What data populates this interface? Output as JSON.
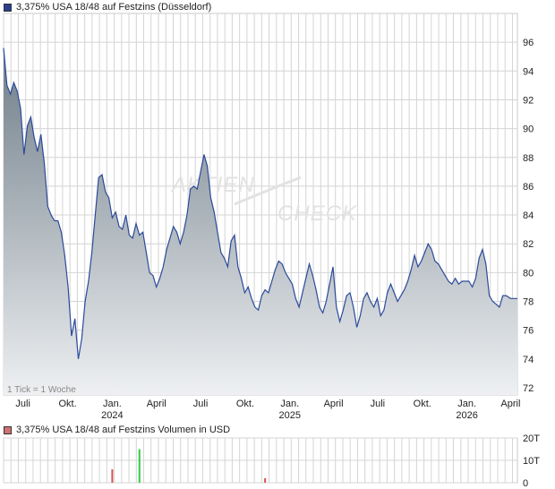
{
  "colors": {
    "price_legend_swatch": "#2b3f8f",
    "volume_legend_swatch": "#d07070",
    "price_line": "#2b4a9a",
    "area_top": "#6f7d88",
    "area_bottom": "#eef0f2",
    "grid": "#d4d4d4",
    "volume_up": "#2ecc40",
    "volume_down": "#d9534f"
  },
  "watermark": {
    "line1": "AKTIEN",
    "line2": "CHECK"
  },
  "chart_data": [
    {
      "type": "area",
      "title": "3,375% USA 18/48 auf Festzins (Düsseldorf)",
      "note": "1 Tick = 1 Woche",
      "ylim": [
        71.5,
        98
      ],
      "y_ticks": [
        72,
        74,
        76,
        78,
        80,
        82,
        84,
        86,
        88,
        90,
        92,
        94,
        96
      ],
      "y_tick_labels": [
        "72",
        "74",
        "76",
        "78",
        "80",
        "82",
        "84",
        "86",
        "88",
        "90",
        "92",
        "94",
        "96"
      ],
      "x_range": [
        "2023-05-22",
        "2026-04-15"
      ],
      "x_ticks": [
        {
          "date": "2023-07-01",
          "label": "Juli",
          "sublabel": ""
        },
        {
          "date": "2023-10-01",
          "label": "Okt.",
          "sublabel": ""
        },
        {
          "date": "2024-01-01",
          "label": "Jan.",
          "sublabel": "2024"
        },
        {
          "date": "2024-04-01",
          "label": "April",
          "sublabel": ""
        },
        {
          "date": "2024-07-01",
          "label": "Juli",
          "sublabel": ""
        },
        {
          "date": "2024-10-01",
          "label": "Okt.",
          "sublabel": ""
        },
        {
          "date": "2025-01-01",
          "label": "Jan.",
          "sublabel": "2025"
        },
        {
          "date": "2025-04-01",
          "label": "April",
          "sublabel": ""
        },
        {
          "date": "2025-07-01",
          "label": "Juli",
          "sublabel": ""
        },
        {
          "date": "2025-10-01",
          "label": "Okt.",
          "sublabel": ""
        },
        {
          "date": "2026-01-01",
          "label": "Jan.",
          "sublabel": "2026"
        },
        {
          "date": "2026-04-01",
          "label": "April",
          "sublabel": ""
        }
      ],
      "grid": true,
      "series": [
        {
          "values": [
            [
              "2023-05-22",
              95.6
            ],
            [
              "2023-05-29",
              93.0
            ],
            [
              "2023-06-05",
              92.4
            ],
            [
              "2023-06-12",
              93.2
            ],
            [
              "2023-06-19",
              92.6
            ],
            [
              "2023-06-26",
              91.4
            ],
            [
              "2023-07-03",
              88.2
            ],
            [
              "2023-07-10",
              90.2
            ],
            [
              "2023-07-17",
              90.8
            ],
            [
              "2023-07-24",
              89.4
            ],
            [
              "2023-07-31",
              88.4
            ],
            [
              "2023-08-07",
              89.6
            ],
            [
              "2023-08-14",
              87.6
            ],
            [
              "2023-08-21",
              84.6
            ],
            [
              "2023-08-28",
              84.0
            ],
            [
              "2023-09-04",
              83.6
            ],
            [
              "2023-09-11",
              83.6
            ],
            [
              "2023-09-18",
              82.8
            ],
            [
              "2023-09-25",
              81.2
            ],
            [
              "2023-10-02",
              79.0
            ],
            [
              "2023-10-09",
              75.6
            ],
            [
              "2023-10-16",
              76.8
            ],
            [
              "2023-10-23",
              74.0
            ],
            [
              "2023-10-30",
              75.4
            ],
            [
              "2023-11-06",
              78.0
            ],
            [
              "2023-11-13",
              79.4
            ],
            [
              "2023-11-20",
              81.4
            ],
            [
              "2023-11-27",
              84.0
            ],
            [
              "2023-12-04",
              86.6
            ],
            [
              "2023-12-11",
              86.8
            ],
            [
              "2023-12-18",
              85.6
            ],
            [
              "2023-12-25",
              85.2
            ],
            [
              "2024-01-01",
              83.8
            ],
            [
              "2024-01-08",
              84.2
            ],
            [
              "2024-01-15",
              83.2
            ],
            [
              "2024-01-22",
              83.0
            ],
            [
              "2024-01-29",
              84.0
            ],
            [
              "2024-02-05",
              82.6
            ],
            [
              "2024-02-12",
              82.4
            ],
            [
              "2024-02-19",
              83.4
            ],
            [
              "2024-02-26",
              82.6
            ],
            [
              "2024-03-04",
              82.8
            ],
            [
              "2024-03-11",
              81.4
            ],
            [
              "2024-03-18",
              80.0
            ],
            [
              "2024-03-25",
              79.8
            ],
            [
              "2024-04-01",
              79.0
            ],
            [
              "2024-04-08",
              79.6
            ],
            [
              "2024-04-15",
              80.4
            ],
            [
              "2024-04-22",
              81.6
            ],
            [
              "2024-04-29",
              82.4
            ],
            [
              "2024-05-06",
              83.2
            ],
            [
              "2024-05-13",
              82.8
            ],
            [
              "2024-05-20",
              82.0
            ],
            [
              "2024-05-27",
              82.8
            ],
            [
              "2024-06-03",
              84.0
            ],
            [
              "2024-06-10",
              85.8
            ],
            [
              "2024-06-17",
              86.0
            ],
            [
              "2024-06-24",
              85.8
            ],
            [
              "2024-07-01",
              87.0
            ],
            [
              "2024-07-08",
              88.2
            ],
            [
              "2024-07-15",
              87.4
            ],
            [
              "2024-07-22",
              85.2
            ],
            [
              "2024-07-29",
              84.2
            ],
            [
              "2024-08-05",
              82.8
            ],
            [
              "2024-08-12",
              81.4
            ],
            [
              "2024-08-19",
              81.0
            ],
            [
              "2024-08-26",
              80.4
            ],
            [
              "2024-09-02",
              82.2
            ],
            [
              "2024-09-09",
              82.6
            ],
            [
              "2024-09-16",
              80.4
            ],
            [
              "2024-09-23",
              79.6
            ],
            [
              "2024-09-30",
              78.6
            ],
            [
              "2024-10-07",
              79.0
            ],
            [
              "2024-10-14",
              78.2
            ],
            [
              "2024-10-21",
              77.6
            ],
            [
              "2024-10-28",
              77.4
            ],
            [
              "2024-11-04",
              78.4
            ],
            [
              "2024-11-11",
              78.8
            ],
            [
              "2024-11-18",
              78.6
            ],
            [
              "2024-11-25",
              79.4
            ],
            [
              "2024-12-02",
              80.2
            ],
            [
              "2024-12-09",
              80.8
            ],
            [
              "2024-12-16",
              80.6
            ],
            [
              "2024-12-23",
              80.0
            ],
            [
              "2024-12-30",
              79.6
            ],
            [
              "2025-01-06",
              79.2
            ],
            [
              "2025-01-13",
              78.2
            ],
            [
              "2025-01-20",
              77.6
            ],
            [
              "2025-01-27",
              78.6
            ],
            [
              "2025-02-03",
              79.6
            ],
            [
              "2025-02-10",
              80.6
            ],
            [
              "2025-02-17",
              79.8
            ],
            [
              "2025-02-24",
              78.8
            ],
            [
              "2025-03-03",
              77.6
            ],
            [
              "2025-03-10",
              77.2
            ],
            [
              "2025-03-17",
              78.0
            ],
            [
              "2025-03-24",
              79.2
            ],
            [
              "2025-03-31",
              80.4
            ],
            [
              "2025-04-07",
              77.6
            ],
            [
              "2025-04-14",
              76.6
            ],
            [
              "2025-04-21",
              77.4
            ],
            [
              "2025-04-28",
              78.4
            ],
            [
              "2025-05-05",
              78.6
            ],
            [
              "2025-05-12",
              77.6
            ],
            [
              "2025-05-19",
              76.2
            ],
            [
              "2025-05-26",
              77.0
            ],
            [
              "2025-06-02",
              78.2
            ],
            [
              "2025-06-09",
              78.6
            ],
            [
              "2025-06-16",
              78.0
            ],
            [
              "2025-06-23",
              77.6
            ],
            [
              "2025-06-30",
              78.2
            ],
            [
              "2025-07-07",
              77.0
            ],
            [
              "2025-07-14",
              77.4
            ],
            [
              "2025-07-21",
              78.6
            ],
            [
              "2025-07-28",
              79.2
            ],
            [
              "2025-08-04",
              78.6
            ],
            [
              "2025-08-11",
              78.0
            ],
            [
              "2025-08-18",
              78.4
            ],
            [
              "2025-08-25",
              78.8
            ],
            [
              "2025-09-01",
              79.4
            ],
            [
              "2025-09-08",
              80.2
            ],
            [
              "2025-09-15",
              81.2
            ],
            [
              "2025-09-22",
              80.4
            ],
            [
              "2025-09-29",
              80.8
            ],
            [
              "2025-10-06",
              81.4
            ],
            [
              "2025-10-13",
              82.0
            ],
            [
              "2025-10-20",
              81.6
            ],
            [
              "2025-10-27",
              80.8
            ],
            [
              "2025-11-03",
              80.6
            ],
            [
              "2025-11-10",
              80.2
            ],
            [
              "2025-11-17",
              79.8
            ],
            [
              "2025-11-24",
              79.4
            ],
            [
              "2025-12-01",
              79.2
            ],
            [
              "2025-12-08",
              79.6
            ],
            [
              "2025-12-15",
              79.2
            ],
            [
              "2025-12-22",
              79.4
            ],
            [
              "2026-01-05",
              79.4
            ],
            [
              "2026-01-12",
              79.0
            ],
            [
              "2026-01-19",
              79.6
            ],
            [
              "2026-01-26",
              81.0
            ],
            [
              "2026-02-02",
              81.6
            ],
            [
              "2026-02-09",
              80.6
            ],
            [
              "2026-02-16",
              78.4
            ],
            [
              "2026-02-23",
              78.0
            ],
            [
              "2026-03-02",
              77.8
            ],
            [
              "2026-03-09",
              77.6
            ],
            [
              "2026-03-16",
              78.4
            ],
            [
              "2026-03-23",
              78.4
            ],
            [
              "2026-04-01",
              78.2
            ],
            [
              "2026-04-15",
              78.2
            ]
          ]
        }
      ]
    },
    {
      "type": "bar",
      "title": "3,375% USA 18/48 auf Festzins Volumen in USD",
      "ylim": [
        0,
        20
      ],
      "y_ticks": [
        0,
        10,
        20
      ],
      "y_tick_labels": [
        "0",
        "10T",
        "20T"
      ],
      "unit": "T",
      "series": [
        {
          "values": [
            {
              "date": "2024-01-01",
              "value": 6,
              "direction": "down"
            },
            {
              "date": "2024-02-26",
              "value": 15,
              "direction": "up"
            },
            {
              "date": "2024-11-11",
              "value": 2,
              "direction": "down"
            }
          ]
        }
      ]
    }
  ]
}
